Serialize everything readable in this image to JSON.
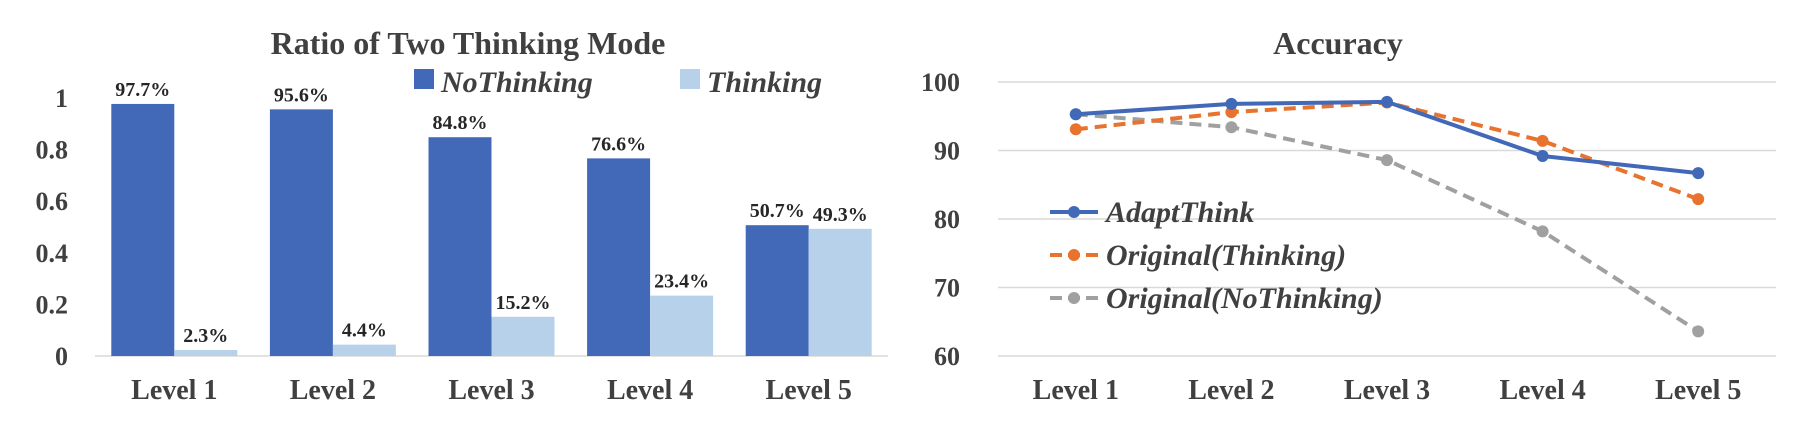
{
  "chart_data": [
    {
      "type": "bar",
      "title": "Ratio of Two Thinking Mode",
      "categories": [
        "Level 1",
        "Level 2",
        "Level 3",
        "Level 4",
        "Level 5"
      ],
      "series": [
        {
          "name": "NoThinking",
          "color": "#4169b8",
          "values": [
            0.977,
            0.956,
            0.848,
            0.766,
            0.507
          ],
          "labels": [
            "97.7%",
            "95.6%",
            "84.8%",
            "76.6%",
            "50.7%"
          ]
        },
        {
          "name": "Thinking",
          "color": "#b8d1ea",
          "values": [
            0.023,
            0.044,
            0.152,
            0.234,
            0.493
          ],
          "labels": [
            "2.3%",
            "4.4%",
            "15.2%",
            "23.4%",
            "49.3%"
          ]
        }
      ],
      "yticks": [
        "0",
        "0.2",
        "0.4",
        "0.6",
        "0.8",
        "1"
      ],
      "ylim": [
        0,
        1
      ],
      "grid": false,
      "legend": "top"
    },
    {
      "type": "line",
      "title": "Accuracy",
      "categories": [
        "Level 1",
        "Level 2",
        "Level 3",
        "Level 4",
        "Level 5"
      ],
      "series": [
        {
          "name": "AdaptThink",
          "color": "#4169b8",
          "dash": "solid",
          "values": [
            95.3,
            96.8,
            97.1,
            89.2,
            86.7
          ]
        },
        {
          "name": "Original(Thinking)",
          "color": "#e8732e",
          "dash": "dashed",
          "values": [
            93.1,
            95.6,
            97.0,
            91.4,
            82.9
          ]
        },
        {
          "name": "Original(NoThinking)",
          "color": "#a0a0a0",
          "dash": "dashed",
          "values": [
            95.3,
            93.4,
            88.6,
            78.2,
            63.6
          ]
        }
      ],
      "yticks": [
        "60",
        "70",
        "80",
        "90",
        "100"
      ],
      "ylim": [
        60,
        100
      ],
      "grid": true,
      "legend": "left"
    }
  ]
}
